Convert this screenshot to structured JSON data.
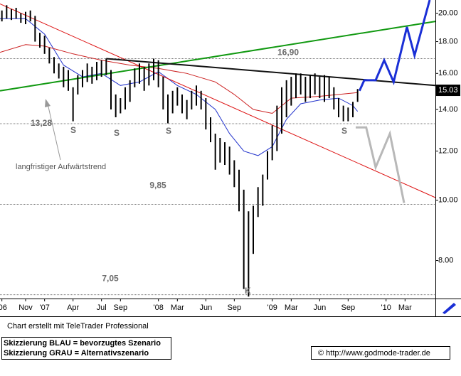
{
  "chart_data": {
    "type": "hilo",
    "color": "#000000",
    "log_scale": true,
    "xlim": [
      -4.7,
      41.2
    ],
    "ylim": [
      6.95,
      21
    ],
    "yticks": [
      {
        "value": 8,
        "label": "8.00"
      },
      {
        "value": 10,
        "label": "10.00"
      },
      {
        "value": 12,
        "label": "12.00"
      },
      {
        "value": 14,
        "label": "14.00"
      },
      {
        "value": 16,
        "label": "16.00"
      },
      {
        "value": 18,
        "label": "18.00"
      },
      {
        "value": 20,
        "label": "20.00"
      }
    ],
    "xticks": [
      {
        "value": -4.5,
        "label": "'06"
      },
      {
        "value": -2,
        "label": "Nov"
      },
      {
        "value": 0,
        "label": "'07"
      },
      {
        "value": 3,
        "label": "Apr"
      },
      {
        "value": 6,
        "label": "Jul"
      },
      {
        "value": 8,
        "label": "Sep"
      },
      {
        "value": 12,
        "label": "'08"
      },
      {
        "value": 14,
        "label": "Mar"
      },
      {
        "value": 17,
        "label": "Jun"
      },
      {
        "value": 20,
        "label": "Sep"
      },
      {
        "value": 24,
        "label": "'09"
      },
      {
        "value": 26,
        "label": "Mar"
      },
      {
        "value": 29,
        "label": "Jun"
      },
      {
        "value": 32,
        "label": "Sep"
      },
      {
        "value": 36,
        "label": "'10"
      },
      {
        "value": 38,
        "label": "Mar"
      }
    ],
    "x": [
      -4.5,
      -4,
      -3.5,
      -3,
      -2.5,
      -2,
      -1.5,
      -1,
      -0.5,
      0,
      0.5,
      1,
      1.5,
      2,
      2.5,
      3,
      3.5,
      4,
      4.5,
      5,
      5.5,
      6,
      6.5,
      7,
      7.5,
      8,
      8.5,
      9,
      9.5,
      10,
      10.5,
      11,
      11.5,
      12,
      12.5,
      13,
      13.5,
      14,
      14.5,
      15,
      15.5,
      16,
      16.5,
      17,
      17.5,
      18,
      18.5,
      19,
      19.5,
      20,
      20.5,
      21,
      21.5,
      22,
      22.5,
      23,
      23.5,
      24,
      24.5,
      25,
      25.5,
      26,
      26.5,
      27,
      27.5,
      28,
      28.5,
      29,
      29.5,
      30,
      30.5,
      31,
      31.5,
      32,
      32.5,
      33
    ],
    "low": [
      19.4,
      19.6,
      19.5,
      19.6,
      19.3,
      19.2,
      19.4,
      18.0,
      17.6,
      17.2,
      16.6,
      16.0,
      15.7,
      15.2,
      15.0,
      13.4,
      14.8,
      15.2,
      15.5,
      15.4,
      15.6,
      15.8,
      15.9,
      14.0,
      13.6,
      13.8,
      14.0,
      14.4,
      15.2,
      15.4,
      15.0,
      15.3,
      15.6,
      15.2,
      14.0,
      13.3,
      13.8,
      14.2,
      13.8,
      13.5,
      14.0,
      14.2,
      14.0,
      13.0,
      12.4,
      11.2,
      11.5,
      11.4,
      11.0,
      10.5,
      9.6,
      7.2,
      7.0,
      8.2,
      9.4,
      9.8,
      10.8,
      11.6,
      12.0,
      12.8,
      13.6,
      14.2,
      14.6,
      14.8,
      14.4,
      14.6,
      14.8,
      14.6,
      14.4,
      14.6,
      14.0,
      13.6,
      13.4,
      13.4,
      13.6,
      14.4
    ],
    "high": [
      20.2,
      20.6,
      20.3,
      20.4,
      20.0,
      20.1,
      20.2,
      19.8,
      18.6,
      18.4,
      17.6,
      17.0,
      16.6,
      16.4,
      16.2,
      15.2,
      15.9,
      16.2,
      16.6,
      16.4,
      16.7,
      16.8,
      16.9,
      16.2,
      14.8,
      14.6,
      15.2,
      15.6,
      16.3,
      16.6,
      16.4,
      16.6,
      16.9,
      16.8,
      15.8,
      14.8,
      15.0,
      15.2,
      14.8,
      14.5,
      15.0,
      15.3,
      15.0,
      14.6,
      13.6,
      12.8,
      12.6,
      12.4,
      12.2,
      11.6,
      11.2,
      10.4,
      9.6,
      9.8,
      10.5,
      11.0,
      12.0,
      13.2,
      14.2,
      15.2,
      15.6,
      15.8,
      16.0,
      16.0,
      15.8,
      15.9,
      16.0,
      15.8,
      15.9,
      15.8,
      15.2,
      14.6,
      14.2,
      14.1,
      14.4,
      15.1
    ],
    "last_price": 15.03,
    "overlays": [
      {
        "color": "#2233cc",
        "width": 1,
        "x": [
          -4.7,
          -2,
          0,
          2,
          4,
          6,
          8,
          10,
          12,
          14,
          16,
          18,
          19.5,
          21,
          22.5,
          24,
          25.5,
          27,
          29,
          31,
          32.5,
          33
        ],
        "values": [
          19.6,
          19.6,
          18.5,
          16.5,
          15.8,
          16.0,
          15.3,
          15.5,
          16.1,
          15.3,
          14.8,
          14.0,
          12.8,
          12.0,
          11.8,
          12.2,
          13.5,
          14.3,
          14.5,
          14.6,
          14.2,
          13.9
        ]
      },
      {
        "color": "#cc2222",
        "width": 1,
        "x": [
          -4.7,
          -2,
          0,
          3,
          6,
          9,
          12,
          15,
          18,
          20,
          22,
          24,
          26,
          29,
          31,
          33
        ],
        "values": [
          17.3,
          17.8,
          17.7,
          17.2,
          16.8,
          16.5,
          16.3,
          16.0,
          15.5,
          14.8,
          14.0,
          13.8,
          14.6,
          14.7,
          14.8,
          14.9
        ]
      },
      {
        "color": "#dd1111",
        "width": 1,
        "x": [
          -4.7,
          41.2
        ],
        "values": [
          20.7,
          10.1
        ]
      },
      {
        "color": "#119911",
        "width": 2,
        "x": [
          -4.7,
          41.2
        ],
        "values": [
          15.0,
          19.4
        ]
      },
      {
        "color": "#111111",
        "width": 2,
        "x": [
          6.5,
          41.2
        ],
        "values": [
          16.9,
          15.3
        ]
      },
      {
        "color": "#1a2fd6",
        "width": 3,
        "x": [
          33.2,
          33.7,
          34.9,
          35.8,
          36.8,
          38.2,
          39.0,
          40.6
        ],
        "values": [
          15.0,
          15.6,
          15.6,
          16.8,
          15.5,
          19.0,
          17.1,
          21.0
        ]
      },
      {
        "color": "#b8b8b8",
        "width": 3,
        "x": [
          32.8,
          33.9,
          34.9,
          36.4,
          37.9
        ],
        "values": [
          13.1,
          13.1,
          11.3,
          12.8,
          9.9
        ]
      }
    ],
    "levels": [
      {
        "value": 16.9,
        "label": "16,90"
      },
      {
        "value": 13.28,
        "label": "13,28"
      },
      {
        "value": 9.85,
        "label": "9,85"
      },
      {
        "value": 7.05,
        "label": "7,05"
      }
    ],
    "markers": [
      "S",
      "S",
      "S",
      "S",
      "K"
    ],
    "annotation": "langfristiger Aufwärtstrend"
  },
  "footer": {
    "credit": "Chart erstellt mit TeleTrader Professional",
    "legend": [
      "Skizzierung BLAU = bevorzugtes Szenario",
      "Skizzierung GRAU = Alternativszenario"
    ],
    "source": "© http://www.godmode-trader.de"
  }
}
